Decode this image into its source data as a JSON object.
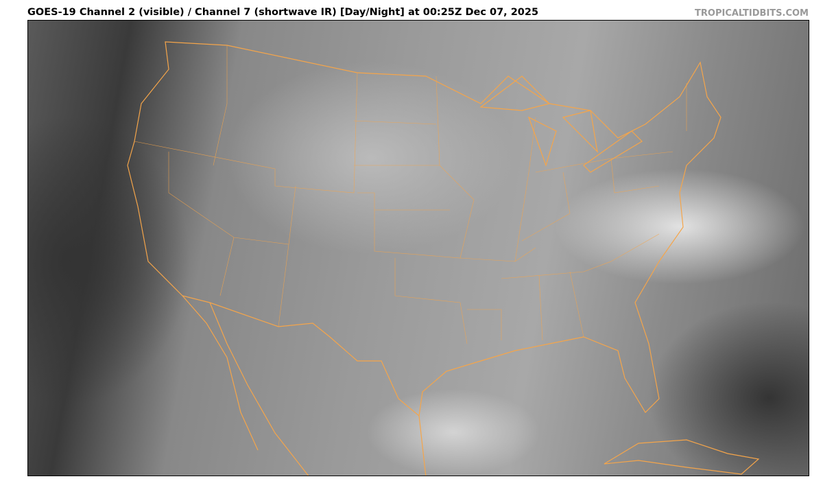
{
  "header": {
    "title": "GOES-19 Channel 2 (visible) / Channel 7 (shortwave IR) [Day/Night] at 00:25Z Dec 07, 2025",
    "brand": "TROPICALTIDBITS.COM"
  },
  "map": {
    "region": "Continental United States",
    "outline_color": "#f5a54a"
  }
}
